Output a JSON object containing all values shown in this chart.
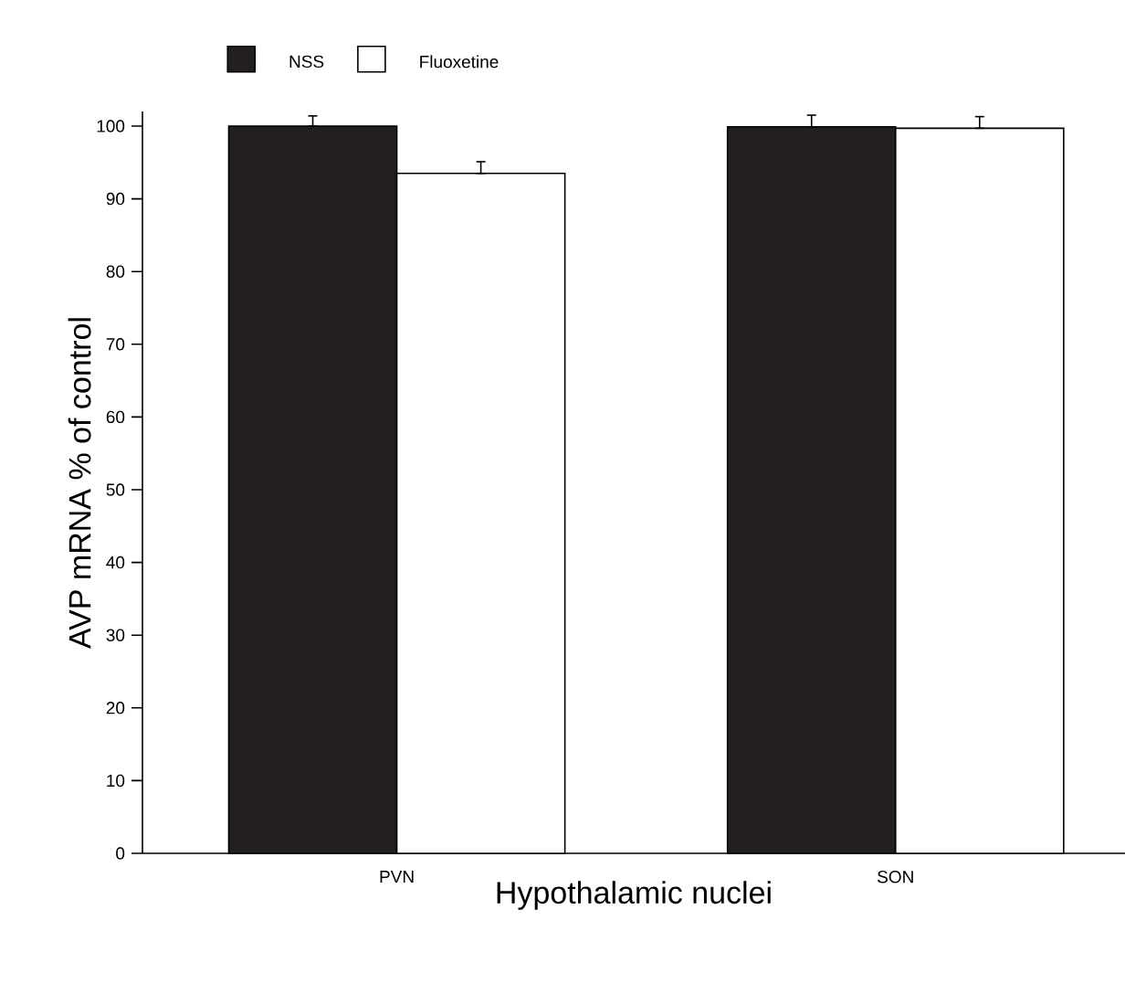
{
  "chart_data": {
    "type": "bar",
    "xlabel": "Hypothalamic nuclei",
    "ylabel": "AVP mRNA % of control",
    "categories": [
      "PVN",
      "SON"
    ],
    "series": [
      {
        "name": "NSS",
        "color": "#231f20",
        "values": [
          100,
          99.9
        ],
        "errors": [
          [
            100,
            101.4
          ],
          [
            99.9,
            101.5
          ]
        ]
      },
      {
        "name": "Fluoxetine",
        "color": "#ffffff",
        "values": [
          93.5,
          99.7
        ],
        "errors": [
          [
            93.5,
            95.1
          ],
          [
            99.7,
            101.3
          ]
        ]
      }
    ],
    "ylim": [
      0,
      102
    ],
    "yticks": [
      0,
      10,
      20,
      30,
      40,
      50,
      60,
      70,
      80,
      90,
      100
    ],
    "legend": "top left",
    "grid": false
  }
}
